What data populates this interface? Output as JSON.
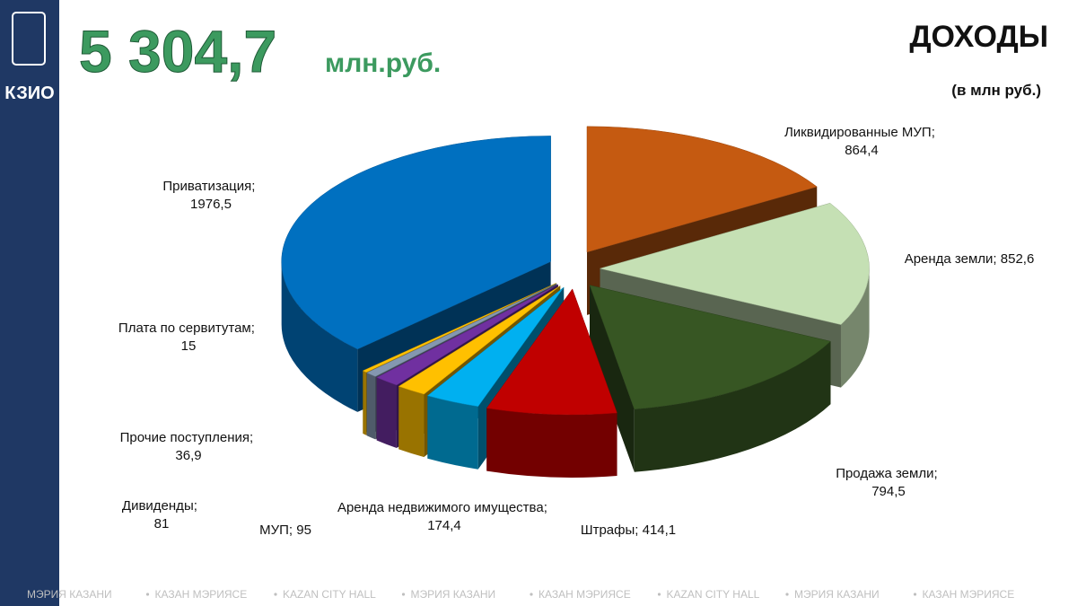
{
  "header": {
    "logo": "КЗИО",
    "headline": "5 304,7",
    "headline_unit": "млн.руб."
  },
  "chart_data": {
    "type": "pie",
    "title": "ДОХОДЫ",
    "subtitle": "(в млн руб.)",
    "categories": [
      "Ликвидированные МУП",
      "Аренда земли",
      "Продажа земли",
      "Штрафы",
      "Аренда недвижимого имущества",
      "МУП",
      "Дивиденды",
      "Прочие поступления",
      "Плата по сервитутам",
      "Приватизация"
    ],
    "values": [
      864.4,
      852.6,
      794.5,
      414.1,
      174.4,
      95,
      81,
      36.9,
      15,
      1976.5
    ],
    "value_labels": [
      "864,4",
      "852,6",
      "794,5",
      "414,1",
      "174,4",
      "95",
      "81",
      "36,9",
      "15",
      "1976,5"
    ],
    "label_separator": "; ",
    "colors": [
      "#c55a11",
      "#c5e0b4",
      "#375623",
      "#c00000",
      "#00b0f0",
      "#ffc000",
      "#7030a0",
      "#8497b0",
      "#ffc000",
      "#0070c0"
    ]
  },
  "footer": [
    "МЭРИЯ КАЗАНИ",
    "КАЗАН МЭРИЯСЕ",
    "KAZAN CITY HALL",
    "МЭРИЯ КАЗАНИ",
    "КАЗАН МЭРИЯСЕ",
    "KAZAN CITY HALL",
    "МЭРИЯ КАЗАНИ",
    "КАЗАН МЭРИЯСЕ"
  ]
}
